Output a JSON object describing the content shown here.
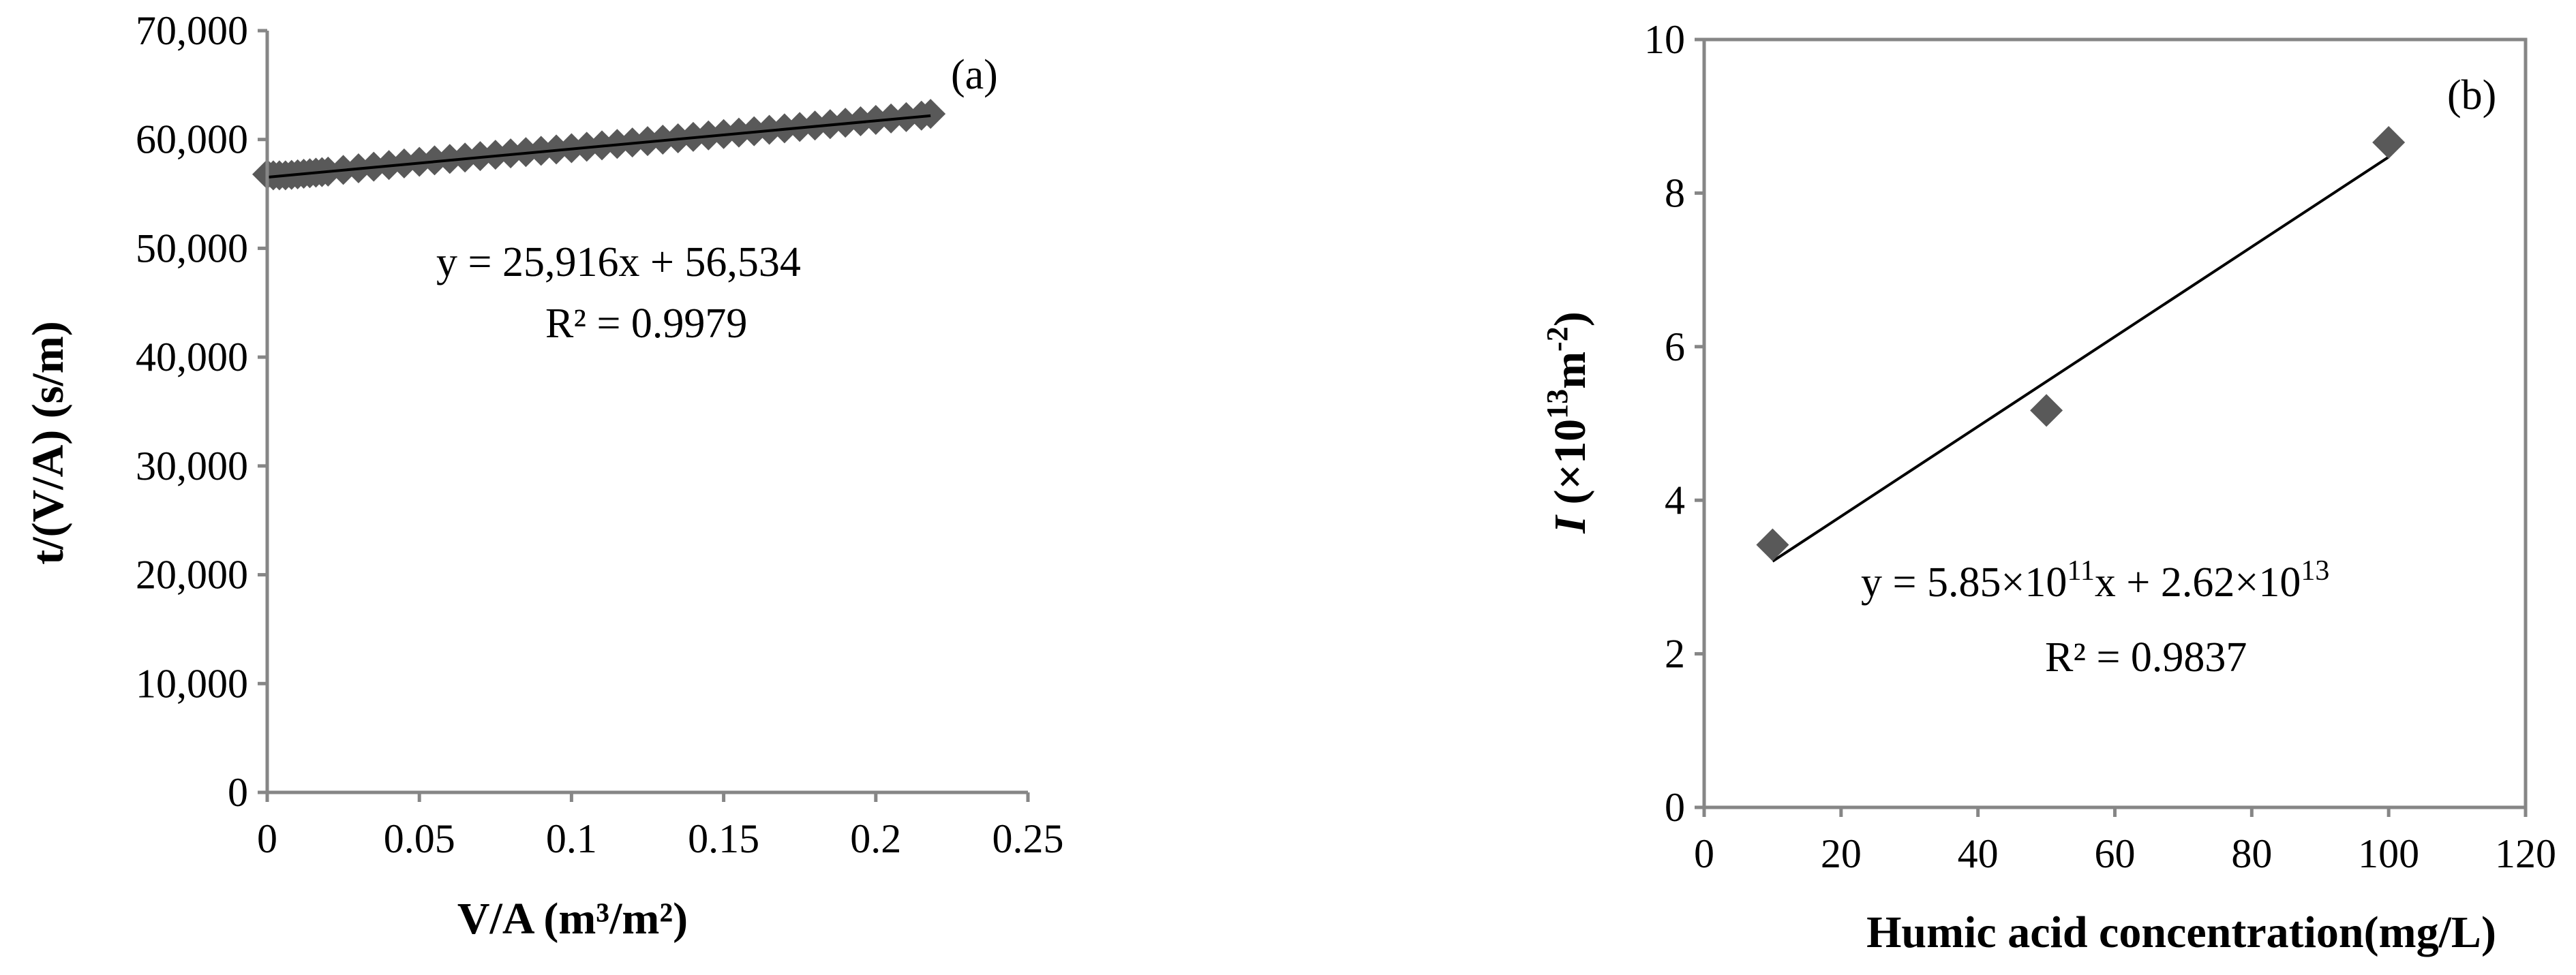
{
  "chart_data": [
    {
      "type": "scatter",
      "panel_label": "(a)",
      "xlabel": "V/A (m³/m²)",
      "ylabel": "t/(V/A) (s/m)",
      "xlim": [
        0,
        0.25
      ],
      "ylim": [
        0,
        70000
      ],
      "x_ticks": [
        0,
        0.05,
        0.1,
        0.15,
        0.2,
        0.25
      ],
      "x_tick_labels": [
        "0",
        "0.05",
        "0.1",
        "0.15",
        "0.2",
        "0.25"
      ],
      "y_ticks": [
        0,
        10000,
        20000,
        30000,
        40000,
        50000,
        60000,
        70000
      ],
      "y_tick_labels": [
        "0",
        "10,000",
        "20,000",
        "30,000",
        "40,000",
        "50,000",
        "60,000",
        "70,000"
      ],
      "grid": false,
      "series": [
        {
          "marker": "diamond",
          "color": "#595959",
          "x": [
            0,
            0.002,
            0.004,
            0.006,
            0.008,
            0.01,
            0.012,
            0.014,
            0.016,
            0.018,
            0.02,
            0.025,
            0.03,
            0.035,
            0.04,
            0.045,
            0.05,
            0.055,
            0.06,
            0.065,
            0.07,
            0.075,
            0.08,
            0.085,
            0.09,
            0.095,
            0.1,
            0.105,
            0.11,
            0.115,
            0.12,
            0.125,
            0.13,
            0.135,
            0.14,
            0.145,
            0.15,
            0.155,
            0.16,
            0.165,
            0.17,
            0.175,
            0.18,
            0.185,
            0.19,
            0.195,
            0.2,
            0.205,
            0.21,
            0.215,
            0.218
          ],
          "y": [
            56800,
            56700,
            56700,
            56700,
            56750,
            56800,
            56850,
            56900,
            56950,
            57000,
            57050,
            57200,
            57350,
            57500,
            57650,
            57800,
            57950,
            58080,
            58210,
            58340,
            58470,
            58600,
            58720,
            58840,
            58960,
            59080,
            59200,
            59330,
            59460,
            59590,
            59720,
            59850,
            59980,
            60110,
            60240,
            60370,
            60500,
            60630,
            60760,
            60890,
            61020,
            61150,
            61280,
            61410,
            61540,
            61670,
            61800,
            61930,
            62060,
            62190,
            62350
          ]
        }
      ],
      "trendline": {
        "slope": 25916,
        "intercept": 56534,
        "x_range": [
          0,
          0.218
        ]
      },
      "annotations": [
        "y = 25,916x + 56,534",
        "R² = 0.9979"
      ]
    },
    {
      "type": "scatter",
      "panel_label": "(b)",
      "xlabel": "Humic acid concentration(mg/L)",
      "ylabel_italic": "I",
      "ylabel_rest": " (×10",
      "ylabel_sup": "13",
      "ylabel_unit": "m",
      "ylabel_unit_sup": "-2",
      "ylabel_close": ")",
      "xlim": [
        0,
        120
      ],
      "ylim": [
        0,
        10
      ],
      "x_ticks": [
        0,
        20,
        40,
        60,
        80,
        100,
        120
      ],
      "x_tick_labels": [
        "0",
        "20",
        "40",
        "60",
        "80",
        "100",
        "120"
      ],
      "y_ticks": [
        0,
        2,
        4,
        6,
        8,
        10
      ],
      "y_tick_labels": [
        "0",
        "2",
        "4",
        "6",
        "8",
        "10"
      ],
      "grid": false,
      "series": [
        {
          "marker": "diamond",
          "color": "#595959",
          "x": [
            10,
            50,
            100
          ],
          "y": [
            3.42,
            5.17,
            8.66
          ]
        }
      ],
      "trendline": {
        "slope": 0.0585,
        "intercept": 2.62,
        "x_range": [
          10,
          100
        ]
      },
      "eq_prefix": "y = 5.85×10",
      "eq_sup1": "11",
      "eq_mid": "x + 2.62×10",
      "eq_sup2": "13",
      "r2": "R² = 0.9837"
    }
  ]
}
